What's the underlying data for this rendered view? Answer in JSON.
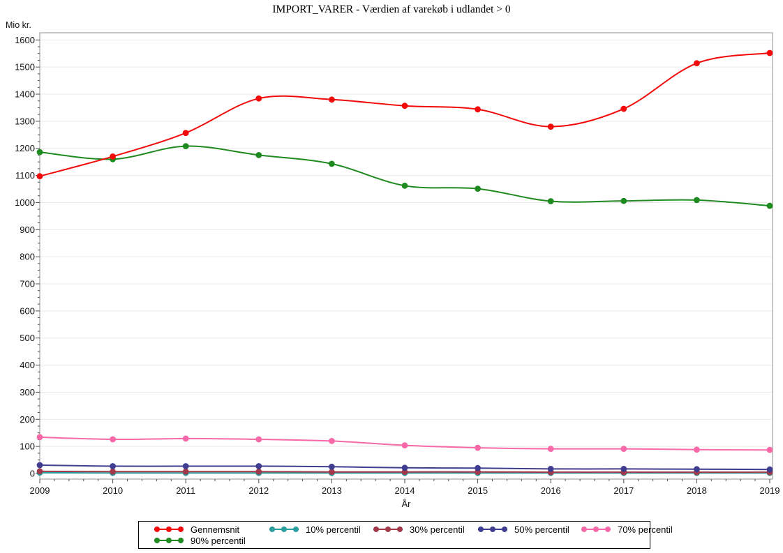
{
  "title": "IMPORT_VARER - Værdien af varekøb i udlandet > 0",
  "y_axis": {
    "unit_label": "Mio kr."
  },
  "x_axis": {
    "label": "År"
  },
  "chart_data": {
    "type": "line",
    "title": "IMPORT_VARER - Værdien af varekøb i udlandet > 0",
    "xlabel": "År",
    "ylabel": "Mio kr.",
    "ylim": [
      0,
      1600
    ],
    "ytick_step": 100,
    "grid": true,
    "legend_position": "bottom",
    "marker": "filled-circle",
    "interpolation": "spline",
    "x": [
      2009,
      2010,
      2011,
      2012,
      2013,
      2014,
      2015,
      2016,
      2017,
      2018,
      2019
    ],
    "series": [
      {
        "name": "Gennemsnit",
        "color": "#f20909",
        "values": [
          1097,
          1170,
          1257,
          1384,
          1380,
          1357,
          1344,
          1280,
          1346,
          1514,
          1552
        ]
      },
      {
        "name": "10% percentil",
        "color": "#2a9c9c",
        "values": [
          3,
          2,
          2,
          2,
          2,
          2,
          2,
          2,
          2,
          2,
          2
        ]
      },
      {
        "name": "30% percentil",
        "color": "#a03a4a",
        "values": [
          8,
          7,
          7,
          7,
          6,
          6,
          6,
          5,
          5,
          5,
          5
        ]
      },
      {
        "name": "50% percentil",
        "color": "#3f3d8f",
        "values": [
          31,
          27,
          27,
          27,
          25,
          21,
          20,
          17,
          17,
          16,
          15
        ]
      },
      {
        "name": "70% percentil",
        "color": "#f768a8",
        "values": [
          134,
          126,
          129,
          126,
          120,
          104,
          95,
          91,
          91,
          88,
          87
        ]
      },
      {
        "name": "90% percentil",
        "color": "#1f8a1f",
        "values": [
          1186,
          1160,
          1208,
          1175,
          1143,
          1062,
          1051,
          1005,
          1006,
          1009,
          988
        ]
      }
    ]
  },
  "legend": {
    "items": [
      "Gennemsnit",
      "10% percentil",
      "30% percentil",
      "50% percentil",
      "70% percentil",
      "90% percentil"
    ]
  },
  "style_colors": {
    "gridline": "#e9e9e9",
    "frame": "#909090",
    "tick": "#4a4a4a",
    "label": "#111111"
  }
}
